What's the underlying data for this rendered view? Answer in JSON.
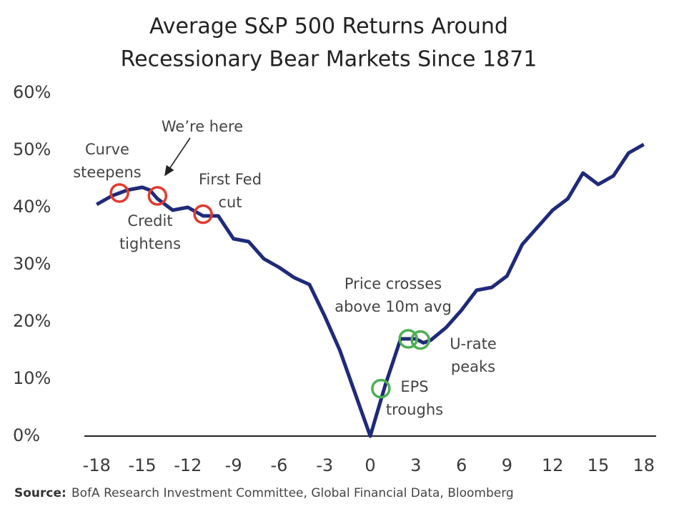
{
  "chart_data": {
    "type": "line",
    "title": [
      "Average S&P 500 Returns Around",
      "Recessionary Bear Markets Since 1871"
    ],
    "x": [
      -18,
      -17,
      -16,
      -15,
      -14.5,
      -14,
      -13,
      -12,
      -11,
      -10,
      -9,
      -8,
      -7,
      -6,
      -5,
      -4,
      -3,
      -2,
      -1,
      0,
      1,
      2,
      3,
      3.5,
      4,
      5,
      6,
      7,
      8,
      9,
      10,
      11,
      12,
      13,
      14,
      15,
      16,
      17,
      18
    ],
    "series": [
      {
        "color": "#1f2a7a",
        "values": [
          40.5,
          42,
          43,
          43.5,
          43,
          41.5,
          39.5,
          40,
          38.5,
          38.5,
          34.5,
          34,
          31,
          29.5,
          27.7,
          26.5,
          21,
          15,
          7.5,
          0,
          9,
          17,
          17,
          16.3,
          16.8,
          19,
          22,
          25.5,
          26,
          28,
          33.5,
          36.5,
          39.5,
          41.5,
          46,
          44,
          45.5,
          49.5,
          51
        ]
      }
    ],
    "xlim": [
      -19,
      19
    ],
    "ylim": [
      0,
      60
    ],
    "xticks": [
      -18,
      -15,
      -12,
      -9,
      -6,
      -3,
      0,
      3,
      6,
      9,
      12,
      15,
      18
    ],
    "yticks": [
      {
        "value": 0,
        "label": "0%"
      },
      {
        "value": 10,
        "label": "10%"
      },
      {
        "value": 20,
        "label": "20%"
      },
      {
        "value": 30,
        "label": "30%"
      },
      {
        "value": 40,
        "label": "40%"
      },
      {
        "value": 50,
        "label": "50%"
      },
      {
        "value": 60,
        "label": "60%"
      }
    ],
    "annotations": [
      {
        "lines": [
          "Curve",
          "steepens"
        ],
        "x": -16.5,
        "y": 42.5,
        "color": "#e03a2f"
      },
      {
        "lines": [
          "Credit",
          "tightens"
        ],
        "x": -14,
        "y": 42,
        "color": "#e03a2f"
      },
      {
        "lines": [
          "First Fed",
          "cut"
        ],
        "x": -11,
        "y": 38.8,
        "color": "#e03a2f"
      },
      {
        "lines": [
          "EPS",
          "troughs"
        ],
        "x": 0.7,
        "y": 8.3,
        "color": "#4cb050"
      },
      {
        "lines": [
          "Price crosses",
          "above 10m avg"
        ],
        "x": 2.5,
        "y": 17,
        "color": "#4cb050"
      },
      {
        "lines": [
          "U-rate",
          "peaks"
        ],
        "x": 3.3,
        "y": 16.8,
        "color": "#4cb050"
      }
    ],
    "callout": "We’re here",
    "source_label": "Source:",
    "source": "BofA Research Investment Committee, Global Financial Data, Bloomberg"
  }
}
